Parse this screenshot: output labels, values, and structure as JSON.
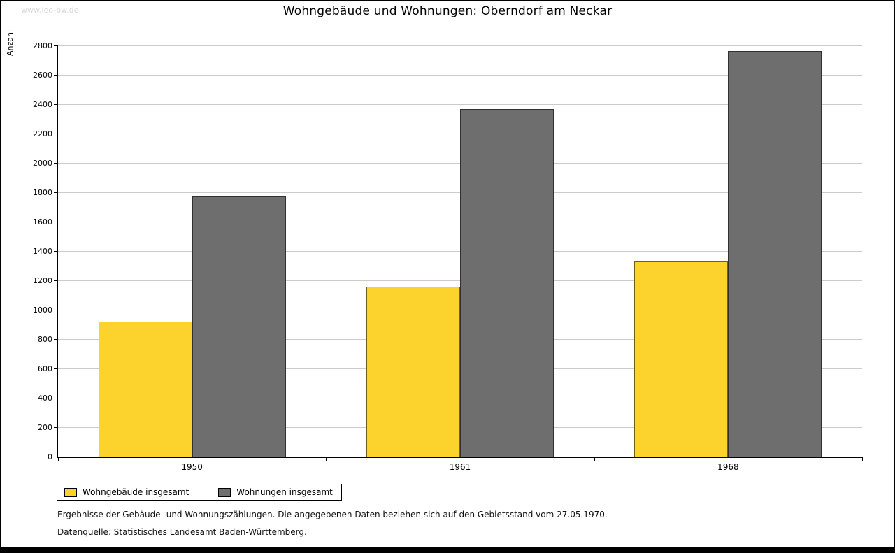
{
  "watermark": "www.leo-bw.de",
  "title": "Wohngebäude und Wohnungen: Oberndorf am Neckar",
  "chart_data": {
    "type": "bar",
    "title": "Wohngebäude und Wohnungen: Oberndorf am Neckar",
    "ylabel": "Anzahl",
    "xlabel": "",
    "categories": [
      "1950",
      "1961",
      "1968"
    ],
    "series": [
      {
        "name": "Wohngebäude insgesamt",
        "color": "#FBD32C",
        "values": [
          925,
          1160,
          1335
        ]
      },
      {
        "name": "Wohnungen insgesamt",
        "color": "#6E6E6E",
        "values": [
          1775,
          2370,
          2765
        ]
      }
    ],
    "ylim": [
      0,
      2800
    ],
    "ytick_step": 200,
    "grid": true,
    "legend_position": "bottom-left"
  },
  "footnotes": [
    "Ergebnisse der Gebäude- und Wohnungszählungen. Die angegebenen Daten beziehen sich auf den Gebietsstand vom 27.05.1970.",
    "Datenquelle: Statistisches Landesamt Baden-Württemberg."
  ]
}
